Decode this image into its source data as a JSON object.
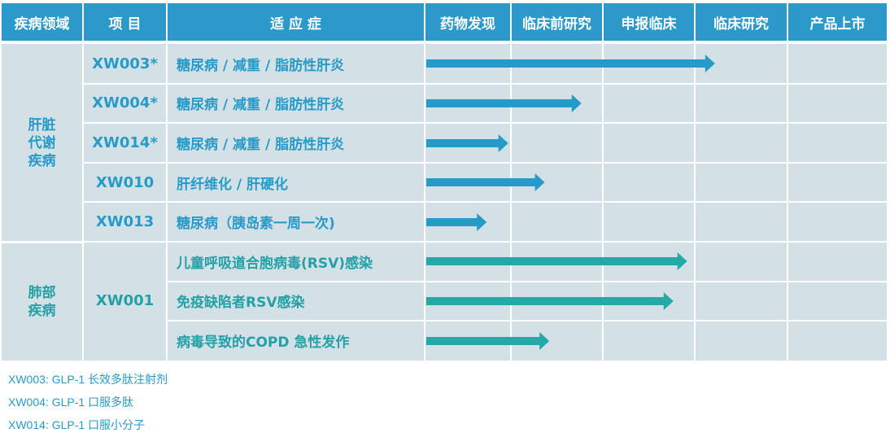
{
  "headers": {
    "area": "疾病领域",
    "project": "项 目",
    "indication": "适 应 症",
    "stages": [
      "药物发现",
      "临床前研究",
      "申报临床",
      "临床研究",
      "产品上市"
    ]
  },
  "colors": {
    "header_bg": "#2b99c9",
    "cell_bg": "#d3e1e7",
    "liver_text": "#279bc8",
    "lung_text": "#23a1a6",
    "liver_arrow": "#279bc8",
    "lung_arrow": "#25a9a7"
  },
  "areas": [
    {
      "name": "肝脏\n代谢\n疾病",
      "group": "liver"
    },
    {
      "name": "肺部\n疾病",
      "group": "lung"
    }
  ],
  "rows": [
    {
      "project": "XW003*",
      "indication": "糖尿病 / 减重 / 脂肪性肝炎",
      "group": "liver",
      "progress_stages": 3.2
    },
    {
      "project": "XW004*",
      "indication": "糖尿病 / 减重 / 脂肪性肝炎",
      "group": "liver",
      "progress_stages": 1.75
    },
    {
      "project": "XW014*",
      "indication": "糖尿病 / 减重 / 脂肪性肝炎",
      "group": "liver",
      "progress_stages": 0.95
    },
    {
      "project": "XW010",
      "indication": "肝纤维化 / 肝硬化",
      "group": "liver",
      "progress_stages": 1.35
    },
    {
      "project": "XW013",
      "indication": "糖尿病（胰岛素一周一次)",
      "group": "liver",
      "progress_stages": 0.7
    },
    {
      "project": "XW001",
      "indication": "儿童呼吸道合胞病毒(RSV)感染",
      "group": "lung",
      "progress_stages": 2.9
    },
    {
      "project": "XW001",
      "indication": "免疫缺陷者RSV感染",
      "group": "lung",
      "progress_stages": 2.75
    },
    {
      "project": "XW001",
      "indication": "病毒导致的COPD 急性发作",
      "group": "lung",
      "progress_stages": 1.4
    }
  ],
  "footnotes": [
    "XW003: GLP-1 长效多肽注射剂",
    "XW004: GLP-1 口服多肽",
    "XW014: GLP-1 口服小分子"
  ]
}
